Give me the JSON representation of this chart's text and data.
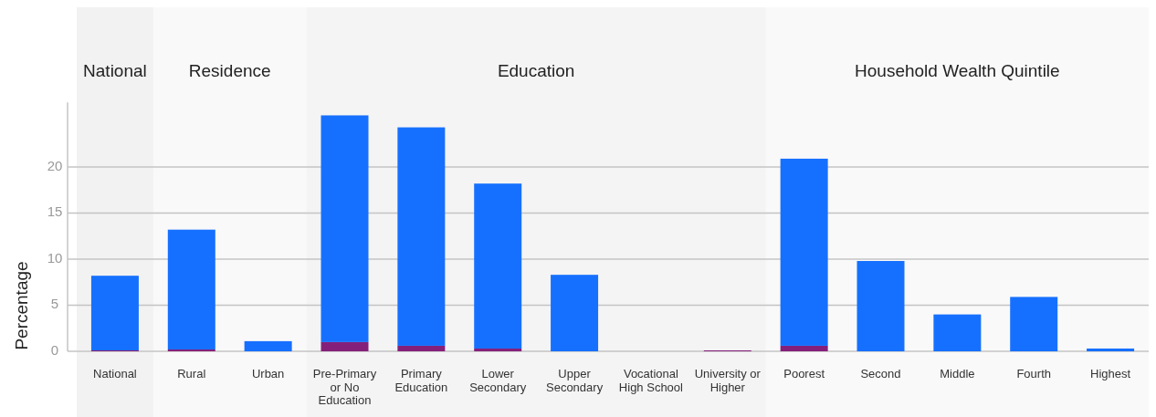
{
  "chart_data": {
    "type": "bar",
    "stacked": true,
    "ylabel": "Percentage",
    "categories": [
      "National",
      "Rural",
      "Urban",
      "Pre-Primary or No Education",
      "Primary Education",
      "Lower Secondary",
      "Upper Secondary",
      "Vocational High School",
      "University or Higher",
      "Poorest",
      "Second",
      "Middle",
      "Fourth",
      "Highest"
    ],
    "series": [
      {
        "color": "#85207a",
        "values": [
          0.1,
          0.2,
          0,
          1.0,
          0.6,
          0.3,
          0,
          0,
          0.1,
          0.6,
          0,
          0,
          0,
          0
        ]
      },
      {
        "color": "#1670ff",
        "values": [
          8.1,
          13.0,
          1.1,
          24.6,
          23.7,
          17.9,
          8.3,
          0,
          0,
          20.3,
          9.8,
          4.0,
          5.9,
          0.3
        ]
      }
    ],
    "ylim": [
      0,
      27
    ],
    "yticks": [
      0,
      5,
      10,
      15,
      20
    ],
    "grid": "y",
    "bands": [
      {
        "axis": "x",
        "from": "National",
        "to": "National",
        "label": "National",
        "color": "#f2f2f2"
      },
      {
        "axis": "x",
        "from": "Rural",
        "to": "Urban",
        "label": "Residence",
        "color": "#f9f9f9"
      },
      {
        "axis": "x",
        "from": "Pre-Primary or No Education",
        "to": "University or Higher",
        "label": "Education",
        "color": "#f4f4f4"
      },
      {
        "axis": "x",
        "from": "Poorest",
        "to": "Highest",
        "label": "Household Wealth Quintile",
        "color": "#f9f9f9"
      }
    ]
  }
}
